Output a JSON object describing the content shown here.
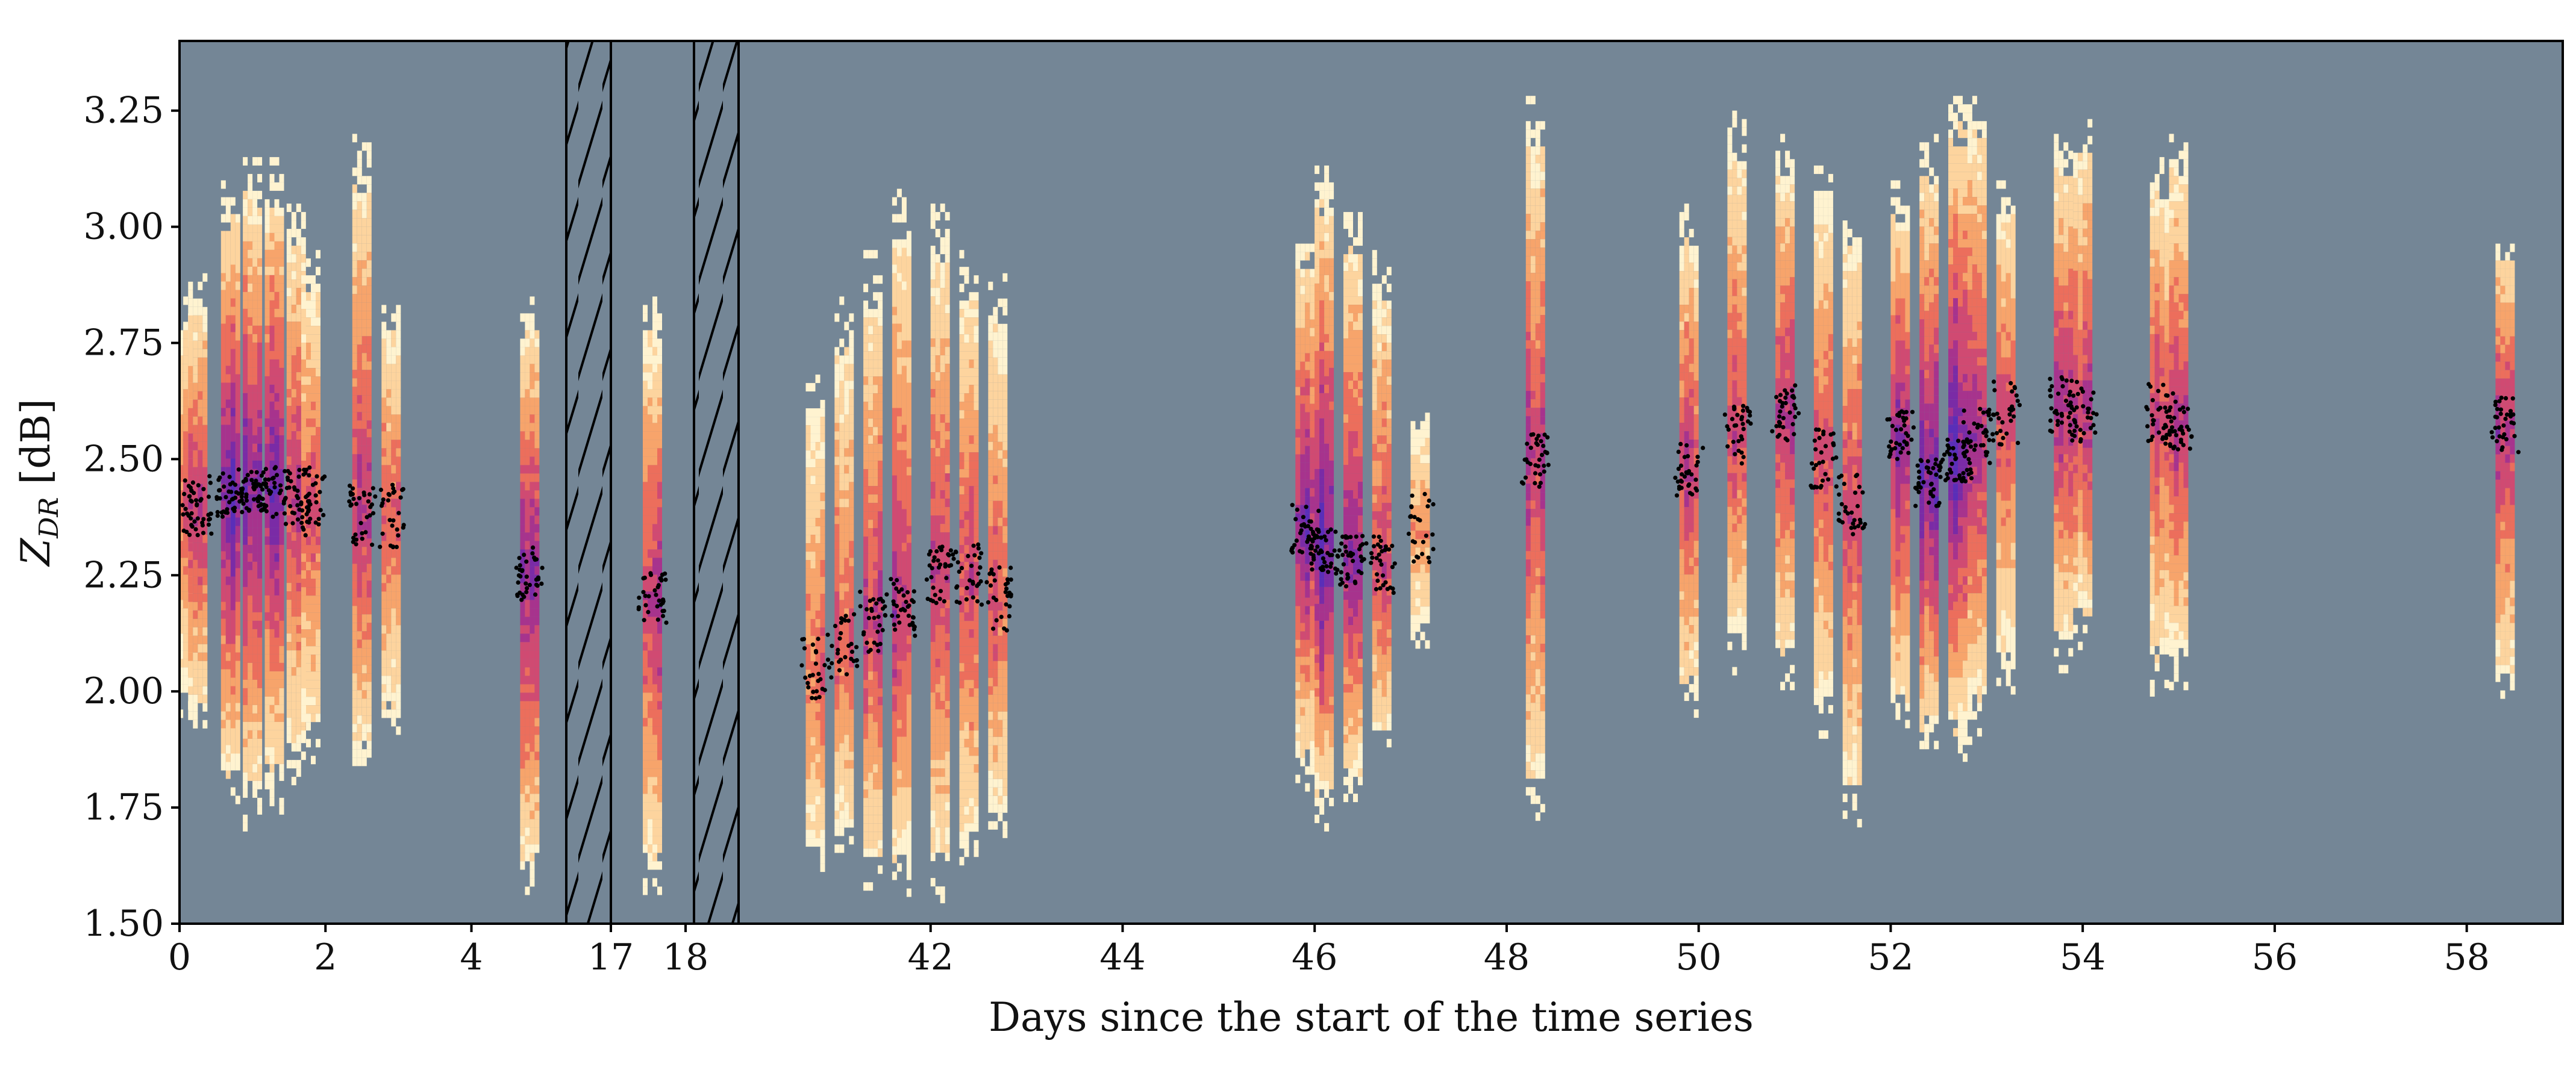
{
  "chart_data": {
    "type": "heatmap",
    "title": "",
    "xlabel": "Days since the start of the time series",
    "ylabel": "Z_DR [dB]",
    "ylabel_base": "Z",
    "ylabel_sub": "DR",
    "ylabel_unit": " [dB]",
    "ylim": [
      1.5,
      3.4
    ],
    "y_ticks": [
      "1.50",
      "1.75",
      "2.00",
      "2.25",
      "2.50",
      "2.75",
      "3.00",
      "3.25"
    ],
    "x_ticks": [
      "0",
      "2",
      "4",
      "17",
      "18",
      "42",
      "44",
      "46",
      "48",
      "50",
      "52",
      "54",
      "56",
      "58"
    ],
    "grid": false,
    "legend": "none",
    "gap_markers": [
      "hatched gap after day 5",
      "hatched gap after day 18"
    ],
    "background_color": "#748696",
    "marker_color": "#000000",
    "colormap": [
      "#fff3d0",
      "#fdd49e",
      "#f7a46b",
      "#ec6e5c",
      "#d04a72",
      "#a7338d",
      "#7a2ba6",
      "#5a2eb8"
    ],
    "segments": [
      {
        "name": "days 0–5",
        "x_min": 0,
        "x_max": 5.3
      },
      {
        "name": "day 17",
        "x_min": 17.0,
        "x_max": 17.6
      },
      {
        "name": "days 40–59",
        "x_min": 40.0,
        "x_max": 59.0
      }
    ],
    "columns": [
      {
        "x": 0.05,
        "center": 2.4,
        "low": 1.95,
        "high": 2.85,
        "density": 0.6
      },
      {
        "x": 0.25,
        "center": 2.4,
        "low": 1.9,
        "high": 2.9,
        "density": 0.7
      },
      {
        "x": 0.7,
        "center": 2.42,
        "low": 1.75,
        "high": 3.1,
        "density": 1.0
      },
      {
        "x": 1.0,
        "center": 2.43,
        "low": 1.7,
        "high": 3.15,
        "density": 1.0
      },
      {
        "x": 1.3,
        "center": 2.43,
        "low": 1.75,
        "high": 3.15,
        "density": 0.9
      },
      {
        "x": 1.6,
        "center": 2.42,
        "low": 1.8,
        "high": 3.05,
        "density": 0.75
      },
      {
        "x": 1.8,
        "center": 2.4,
        "low": 1.85,
        "high": 2.95,
        "density": 0.6
      },
      {
        "x": 2.5,
        "center": 2.38,
        "low": 1.8,
        "high": 3.2,
        "density": 0.7
      },
      {
        "x": 2.9,
        "center": 2.38,
        "low": 1.9,
        "high": 2.85,
        "density": 0.55
      },
      {
        "x": 4.8,
        "center": 2.25,
        "low": 1.55,
        "high": 2.85,
        "density": 0.8
      },
      {
        "x": 17.3,
        "center": 2.2,
        "low": 1.55,
        "high": 2.85,
        "density": 0.8
      },
      {
        "x": 40.8,
        "center": 2.05,
        "low": 1.6,
        "high": 2.7,
        "density": 0.55
      },
      {
        "x": 41.1,
        "center": 2.1,
        "low": 1.65,
        "high": 2.85,
        "density": 0.6
      },
      {
        "x": 41.4,
        "center": 2.15,
        "low": 1.55,
        "high": 2.95,
        "density": 0.7
      },
      {
        "x": 41.7,
        "center": 2.18,
        "low": 1.55,
        "high": 3.1,
        "density": 0.75
      },
      {
        "x": 42.1,
        "center": 2.25,
        "low": 1.55,
        "high": 3.05,
        "density": 0.75
      },
      {
        "x": 42.4,
        "center": 2.25,
        "low": 1.6,
        "high": 2.95,
        "density": 0.65
      },
      {
        "x": 42.7,
        "center": 2.2,
        "low": 1.65,
        "high": 2.9,
        "density": 0.6
      },
      {
        "x": 45.9,
        "center": 2.35,
        "low": 1.8,
        "high": 3.0,
        "density": 0.9
      },
      {
        "x": 46.1,
        "center": 2.3,
        "low": 1.7,
        "high": 3.15,
        "density": 1.0
      },
      {
        "x": 46.4,
        "center": 2.28,
        "low": 1.75,
        "high": 3.05,
        "density": 0.9
      },
      {
        "x": 46.7,
        "center": 2.27,
        "low": 1.85,
        "high": 2.95,
        "density": 0.7
      },
      {
        "x": 47.1,
        "center": 2.35,
        "low": 2.1,
        "high": 2.6,
        "density": 0.45
      },
      {
        "x": 48.3,
        "center": 2.5,
        "low": 1.7,
        "high": 3.3,
        "density": 0.75
      },
      {
        "x": 49.9,
        "center": 2.48,
        "low": 1.95,
        "high": 3.05,
        "density": 0.7
      },
      {
        "x": 50.4,
        "center": 2.55,
        "low": 2.05,
        "high": 3.25,
        "density": 0.7
      },
      {
        "x": 50.9,
        "center": 2.6,
        "low": 2.0,
        "high": 3.2,
        "density": 0.75
      },
      {
        "x": 51.3,
        "center": 2.5,
        "low": 1.9,
        "high": 3.15,
        "density": 0.7
      },
      {
        "x": 51.6,
        "center": 2.4,
        "low": 1.7,
        "high": 3.05,
        "density": 0.65
      },
      {
        "x": 52.1,
        "center": 2.55,
        "low": 1.9,
        "high": 3.1,
        "density": 0.85
      },
      {
        "x": 52.4,
        "center": 2.45,
        "low": 1.85,
        "high": 3.2,
        "density": 0.95
      },
      {
        "x": 52.7,
        "center": 2.5,
        "low": 1.85,
        "high": 3.3,
        "density": 1.0
      },
      {
        "x": 52.9,
        "center": 2.55,
        "low": 1.9,
        "high": 3.3,
        "density": 0.8
      },
      {
        "x": 53.2,
        "center": 2.6,
        "low": 2.0,
        "high": 3.1,
        "density": 0.6
      },
      {
        "x": 53.8,
        "center": 2.62,
        "low": 2.05,
        "high": 3.2,
        "density": 0.75
      },
      {
        "x": 54.0,
        "center": 2.6,
        "low": 2.1,
        "high": 3.25,
        "density": 0.7
      },
      {
        "x": 54.8,
        "center": 2.6,
        "low": 2.0,
        "high": 3.15,
        "density": 0.7
      },
      {
        "x": 55.0,
        "center": 2.58,
        "low": 2.0,
        "high": 3.2,
        "density": 0.75
      },
      {
        "x": 58.4,
        "center": 2.57,
        "low": 1.95,
        "high": 3.0,
        "density": 0.75
      }
    ]
  }
}
